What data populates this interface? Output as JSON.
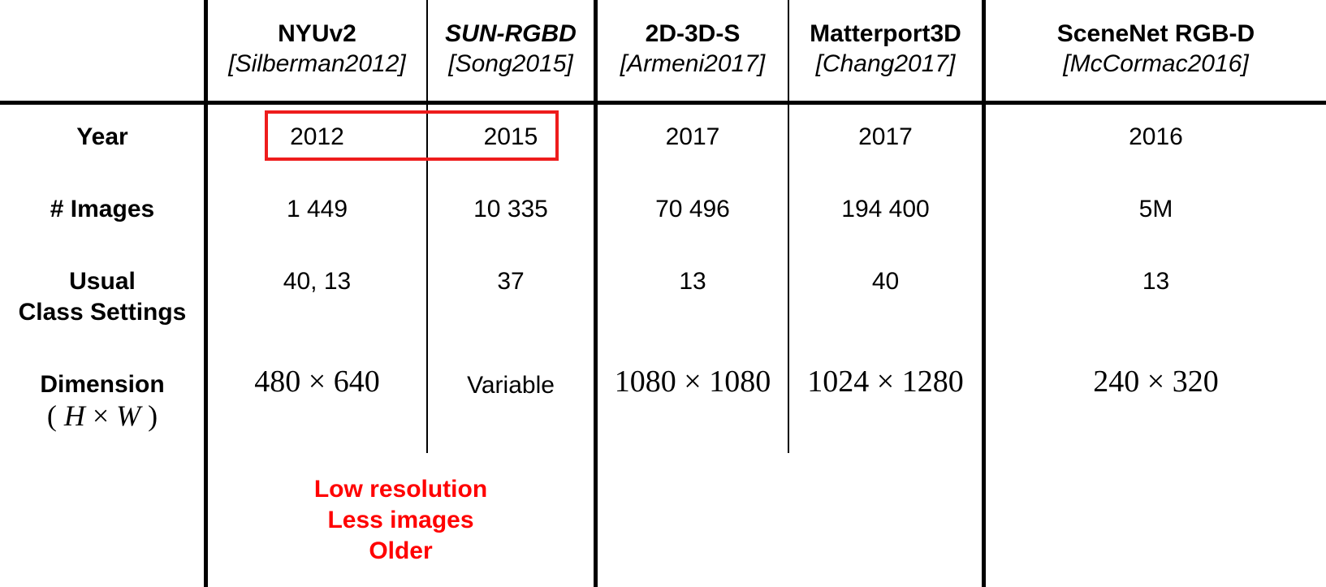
{
  "columns": [
    {
      "name": "NYUv2",
      "cite": "[Silberman2012]",
      "italic_name": false
    },
    {
      "name": "SUN-RGBD",
      "cite": "[Song2015]",
      "italic_name": true
    },
    {
      "name": "2D-3D-S",
      "cite": "[Armeni2017]",
      "italic_name": false
    },
    {
      "name": "Matterport3D",
      "cite": "[Chang2017]",
      "italic_name": false
    },
    {
      "name": "SceneNet RGB-D",
      "cite": "[McCormac2016]",
      "italic_name": false
    }
  ],
  "rows": {
    "year": {
      "label": "Year",
      "values": [
        "2012",
        "2015",
        "2017",
        "2017",
        "2016"
      ]
    },
    "images": {
      "label": "# Images",
      "values": [
        "1 449",
        "10 335",
        "70 496",
        "194 400",
        "5M"
      ]
    },
    "classes": {
      "label_line1": "Usual",
      "label_line2": "Class Settings",
      "values": [
        "40, 13",
        "37",
        "13",
        "40",
        "13"
      ]
    },
    "dimension": {
      "label": "Dimension",
      "sub_open": "( ",
      "sub_h": "H",
      "sub_times": " × ",
      "sub_w": "W",
      "sub_close": " )",
      "values": [
        {
          "a": "480",
          "times": "×",
          "b": "640"
        },
        {
          "text": "Variable"
        },
        {
          "a": "1080",
          "times": "×",
          "b": "1080"
        },
        {
          "a": "1024",
          "times": "×",
          "b": "1280"
        },
        {
          "a": "240",
          "times": "×",
          "b": "320"
        }
      ]
    }
  },
  "annotation": {
    "lines": [
      "Low resolution",
      "Less images",
      "Older"
    ],
    "color": "#ff0000"
  },
  "highlight_color": "#ee1c1c"
}
